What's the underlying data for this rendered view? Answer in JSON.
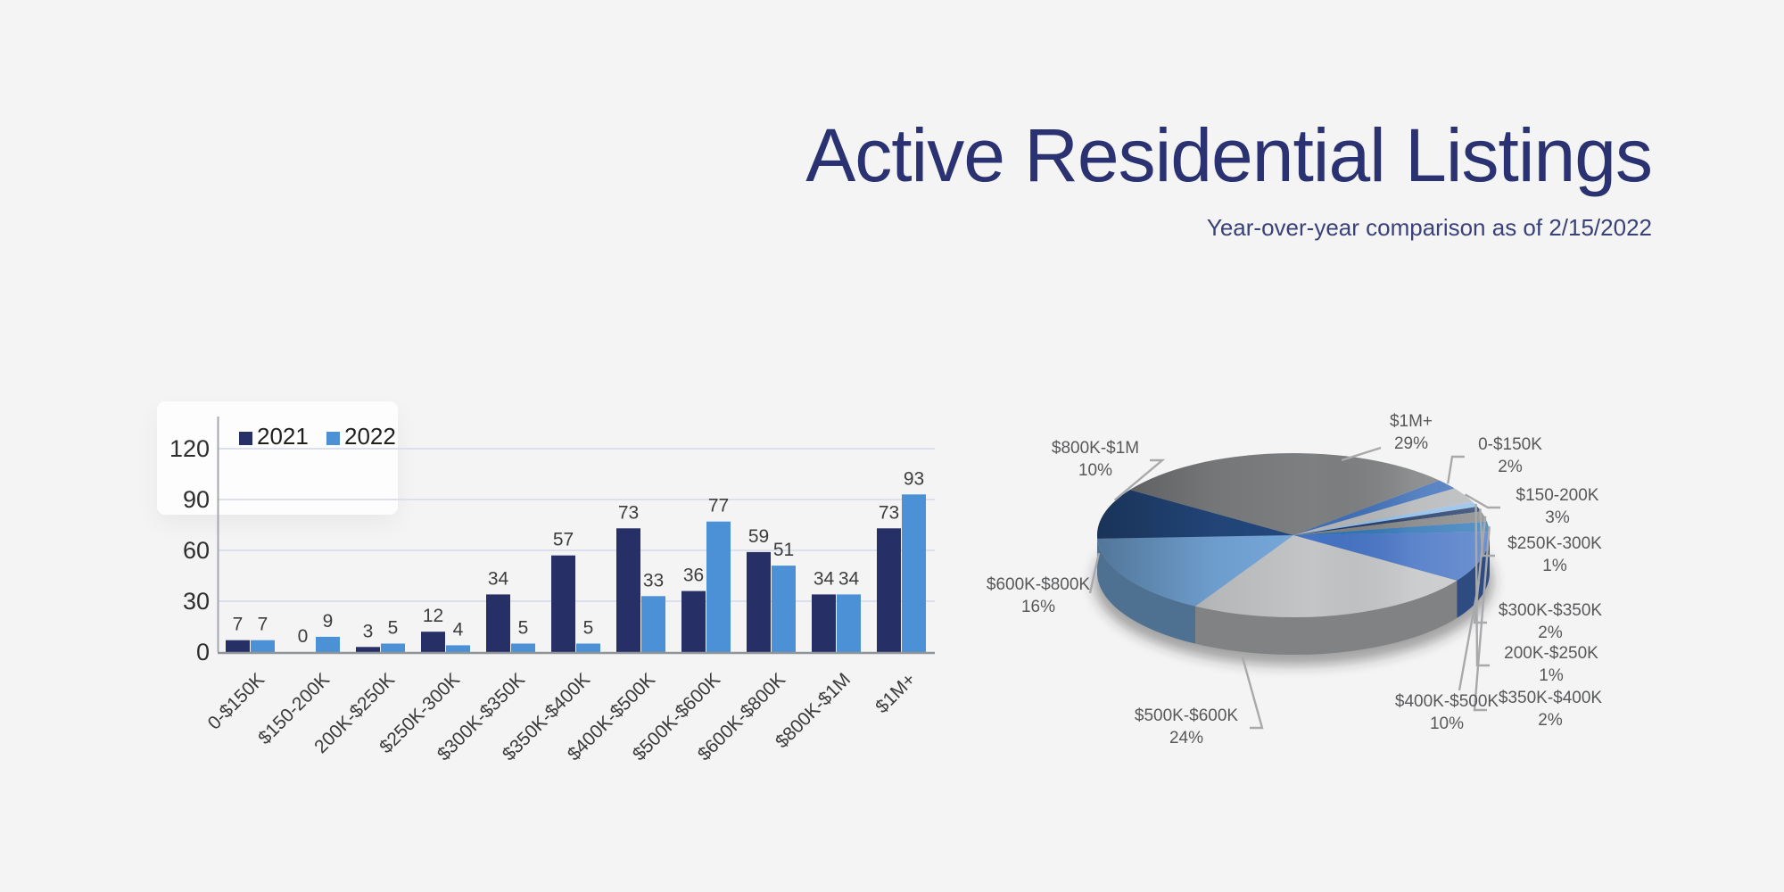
{
  "header": {
    "title": "Active Residential Listings",
    "subtitle": "Year-over-year comparison as of 2/15/2022"
  },
  "theme": {
    "background": "#f4f4f4",
    "title_color": "#2b3271",
    "grid_color": "#dbe0ec",
    "axis_line_color": "#a3a8b0",
    "baseline_color": "#8f9499",
    "axis_text_color": "#2e2e2e",
    "value_text_color": "#3d3d3d",
    "pie_label_color": "#57585a",
    "leader_line_color": "#a8a9ab"
  },
  "chart_data": [
    {
      "name": "listings-by-price-bar",
      "type": "bar",
      "title": "",
      "categories": [
        "0-$150K",
        "$150-200K",
        "200K-$250K",
        "$250K-300K",
        "$300K-$350K",
        "$350K-$400K",
        "$400K-$500K",
        "$500K-$600K",
        "$600K-$800K",
        "$800K-$1M",
        "$1M+"
      ],
      "series": [
        {
          "name": "2021",
          "color": "#262f66",
          "values": [
            7,
            0,
            3,
            12,
            34,
            57,
            73,
            36,
            59,
            34,
            73
          ]
        },
        {
          "name": "2022",
          "color": "#4c90d6",
          "values": [
            7,
            9,
            5,
            4,
            5,
            5,
            33,
            77,
            51,
            34,
            93
          ]
        }
      ],
      "yticks": [
        0,
        30,
        60,
        90,
        120
      ],
      "ylim": [
        0,
        132
      ],
      "grid": true,
      "legend_position": "top-left",
      "value_labels": true
    },
    {
      "name": "listings-share-pie",
      "type": "pie",
      "title": "",
      "labels": [
        "0-$150K",
        "$150-200K",
        "200K-$250K",
        "$250K-300K",
        "$300K-$350K",
        "$350K-$400K",
        "$400K-$500K",
        "$500K-$600K",
        "$600K-$800K",
        "$800K-$1M",
        "$1M+"
      ],
      "values": [
        2,
        3,
        1,
        1,
        2,
        2,
        10,
        24,
        16,
        10,
        29
      ],
      "percent_labels": [
        "2%",
        "3%",
        "1%",
        "1%",
        "2%",
        "2%",
        "10%",
        "24%",
        "16%",
        "10%",
        "29%"
      ],
      "colors": [
        "#3e6fb8",
        "#b3b5b7",
        "#8fbce8",
        "#1f3864",
        "#808080",
        "#2e75b6",
        "#4573c4",
        "#c3c5c7",
        "#76a9dc",
        "#24497f",
        "#7d7f81"
      ],
      "start_angle_deg": 48,
      "legend": false
    }
  ]
}
